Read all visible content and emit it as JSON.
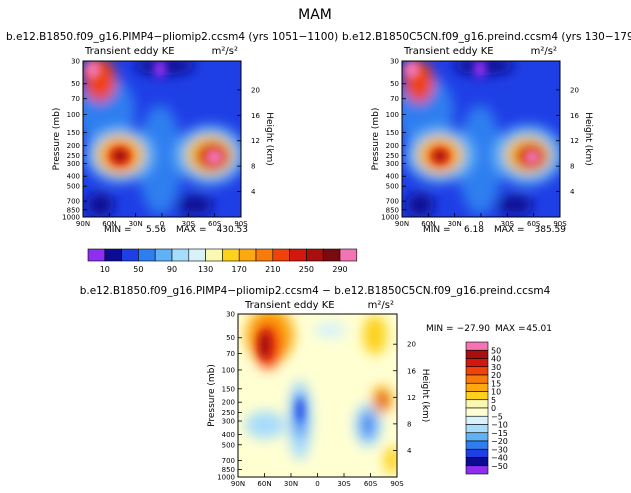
{
  "page_title": "MAM",
  "chart_data": [
    {
      "type": "heatmap",
      "title": "b.e12.B1850.f09_g16.PIMP4−pliomip2.ccsm4 (yrs 1051−1100)",
      "variable": "Transient eddy KE",
      "units": "m²/s²",
      "xlabel": "",
      "ylabel": "Pressure (mb)",
      "ylabel_right": "Height (km)",
      "x_ticks": [
        "90N",
        "60N",
        "30N",
        "0",
        "30S",
        "60S",
        "90S"
      ],
      "y_ticks": [
        "30",
        "50",
        "70",
        "100",
        "150",
        "200",
        "250",
        "300",
        "400",
        "500",
        "700",
        "850",
        "1000"
      ],
      "height_ticks": [
        "20",
        "16",
        "12",
        "8",
        "4"
      ],
      "min_label": "MIN =",
      "min_value": "5.56",
      "max_label": "MAX =",
      "max_value": "430.53",
      "color_levels": [
        "10",
        "50",
        "90",
        "130",
        "170",
        "210",
        "250",
        "290"
      ]
    },
    {
      "type": "heatmap",
      "title": "b.e12.B1850C5CN.f09_g16.preind.ccsm4 (yrs 130−179)",
      "variable": "Transient eddy KE",
      "units": "m²/s²",
      "xlabel": "",
      "ylabel": "Pressure (mb)",
      "ylabel_right": "Height (km)",
      "x_ticks": [
        "90N",
        "60N",
        "30N",
        "0",
        "30S",
        "60S",
        "90S"
      ],
      "y_ticks": [
        "30",
        "50",
        "70",
        "100",
        "150",
        "200",
        "250",
        "300",
        "400",
        "500",
        "700",
        "850",
        "1000"
      ],
      "height_ticks": [
        "20",
        "16",
        "12",
        "8",
        "4"
      ],
      "min_label": "MIN =",
      "min_value": "6.18",
      "max_label": "MAX =",
      "max_value": "385.59",
      "color_levels": [
        "10",
        "50",
        "90",
        "130",
        "170",
        "210",
        "250",
        "290"
      ]
    },
    {
      "type": "heatmap",
      "title": "b.e12.B1850.f09_g16.PIMP4−pliomip2.ccsm4 − b.e12.B1850C5CN.f09_g16.preind.ccsm4",
      "variable": "Transient eddy KE",
      "units": "m²/s²",
      "xlabel": "",
      "ylabel": "Pressure (mb)",
      "ylabel_right": "Height (km)",
      "x_ticks": [
        "90N",
        "60N",
        "30N",
        "0",
        "30S",
        "60S",
        "90S"
      ],
      "y_ticks": [
        "30",
        "50",
        "70",
        "100",
        "150",
        "200",
        "250",
        "300",
        "400",
        "500",
        "700",
        "850",
        "1000"
      ],
      "height_ticks": [
        "20",
        "16",
        "12",
        "8",
        "4"
      ],
      "min_label": "MIN =",
      "min_value": "−27.90",
      "max_label": "MAX =",
      "max_value": "45.01",
      "color_levels": [
        "50",
        "40",
        "30",
        "20",
        "15",
        "10",
        "5",
        "0",
        "−5",
        "−10",
        "−15",
        "−20",
        "−30",
        "−40",
        "−50"
      ]
    }
  ],
  "colors": {
    "abs_scale": [
      "#8d2ef0",
      "#0c0c92",
      "#1f3fe6",
      "#2f7ef0",
      "#5fb2f5",
      "#a8dcfb",
      "#d7f2fb",
      "#fbf8b2",
      "#fcd21c",
      "#fca80e",
      "#f87c0c",
      "#f0430a",
      "#d2170e",
      "#a8100f",
      "#7a0a0d",
      "#f274b4"
    ],
    "diff_scale": [
      "#f274b4",
      "#a8100f",
      "#d2170e",
      "#f0430a",
      "#f87c0c",
      "#fca80e",
      "#fcd21c",
      "#fbf8b2",
      "#ffffd2",
      "#d7f2fb",
      "#a8dcfb",
      "#5fb2f5",
      "#2f7ef0",
      "#1f3fe6",
      "#0c0c92",
      "#8d2ef0"
    ]
  }
}
